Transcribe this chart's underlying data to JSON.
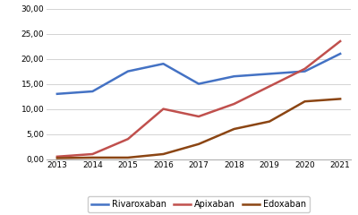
{
  "years": [
    2013,
    2014,
    2015,
    2016,
    2017,
    2018,
    2019,
    2020,
    2021
  ],
  "rivaroxaban": [
    13.0,
    13.5,
    17.5,
    19.0,
    15.0,
    16.5,
    17.0,
    17.5,
    21.0
  ],
  "apixaban": [
    0.5,
    1.0,
    4.0,
    10.0,
    8.5,
    11.0,
    14.5,
    18.0,
    23.5
  ],
  "edoxaban": [
    0.2,
    0.3,
    0.3,
    1.0,
    3.0,
    6.0,
    7.5,
    11.5,
    12.0
  ],
  "rivaroxaban_color": "#4472C4",
  "apixaban_color": "#C0504D",
  "edoxaban_color": "#8B4513",
  "ylim": [
    0,
    30
  ],
  "yticks": [
    0.0,
    5.0,
    10.0,
    15.0,
    20.0,
    25.0,
    30.0
  ],
  "ytick_labels": [
    "0,00",
    "5,00",
    "10,00",
    "15,00",
    "20,00",
    "25,00",
    "30,00"
  ],
  "legend_labels": [
    "Rivaroxaban",
    "Apixaban",
    "Edoxaban"
  ],
  "background_color": "#ffffff",
  "grid_color": "#d3d3d3",
  "line_width": 1.8
}
